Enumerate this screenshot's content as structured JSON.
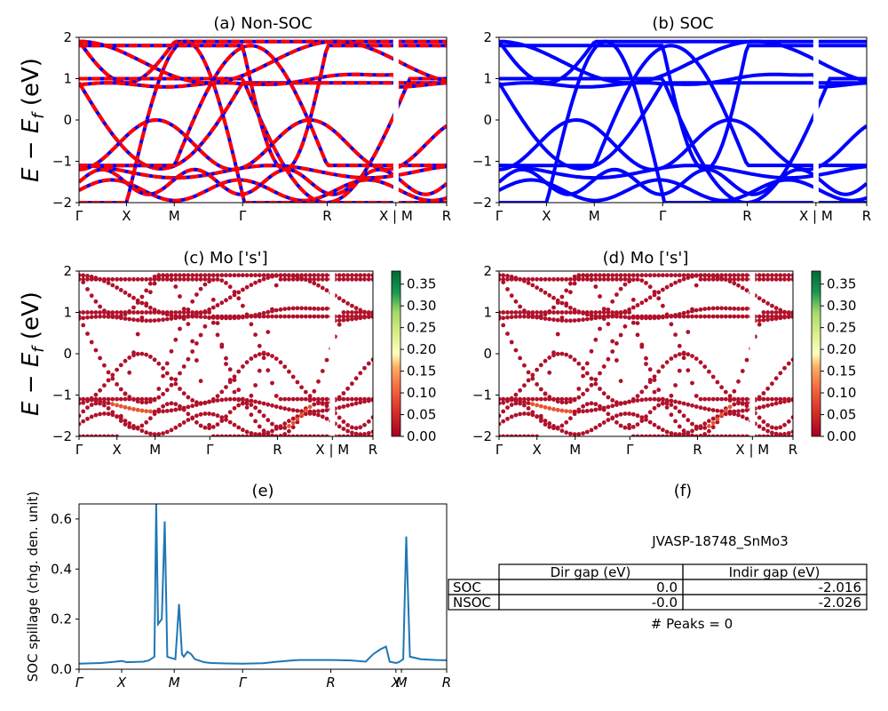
{
  "chart_data": [
    {
      "panel": "a",
      "type": "line",
      "title": "(a) Non-SOC",
      "ylabel": "E − E_f (eV)",
      "ylim": [
        -2,
        2
      ],
      "yticks": [
        "−2",
        "−1",
        "0",
        "1",
        "2"
      ],
      "kpath": [
        "Γ",
        "X",
        "M",
        "Γ",
        "R",
        "X | M",
        "R"
      ],
      "series_colors": [
        "#ff0000",
        "#0000ff"
      ],
      "description": "band structure, red and blue dashed overlapping bands"
    },
    {
      "panel": "b",
      "type": "line",
      "title": "(b) SOC",
      "ylim": [
        -2,
        2
      ],
      "yticks": [
        "−2",
        "−1",
        "0",
        "1",
        "2"
      ],
      "kpath": [
        "Γ",
        "X",
        "M",
        "Γ",
        "R",
        "X | M",
        "R"
      ],
      "series_colors": [
        "#0000ff"
      ]
    },
    {
      "panel": "c",
      "type": "scatter",
      "title": "(c)  Mo ['s']",
      "ylabel": "E − E_f (eV)",
      "ylim": [
        -2,
        2
      ],
      "yticks": [
        "−2",
        "−1",
        "0",
        "1",
        "2"
      ],
      "kpath": [
        "Γ",
        "X",
        "M",
        "Γ",
        "R",
        "X | M",
        "R"
      ],
      "colorbar": {
        "min": 0.0,
        "max": 0.38,
        "ticks": [
          "0.00",
          "0.05",
          "0.10",
          "0.15",
          "0.20",
          "0.25",
          "0.30",
          "0.35"
        ],
        "colormap": "RdYlGn"
      }
    },
    {
      "panel": "d",
      "type": "scatter",
      "title": "(d) Mo ['s']",
      "ylim": [
        -2,
        2
      ],
      "yticks": [
        "−2",
        "−1",
        "0",
        "1",
        "2"
      ],
      "kpath": [
        "Γ",
        "X",
        "M",
        "Γ",
        "R",
        "X | M",
        "R"
      ],
      "colorbar": {
        "min": 0.0,
        "max": 0.38,
        "ticks": [
          "0.00",
          "0.05",
          "0.10",
          "0.15",
          "0.20",
          "0.25",
          "0.30",
          "0.35"
        ],
        "colormap": "RdYlGn"
      }
    },
    {
      "panel": "e",
      "type": "line",
      "title": "(e)",
      "ylabel": "SOC spillage (chg. den. unit)",
      "ylim": [
        0,
        0.66
      ],
      "yticks": [
        "0.0",
        "0.2",
        "0.4",
        "0.6"
      ],
      "kpath": [
        "Γ",
        "X",
        "M",
        "Γ",
        "R",
        "X",
        "M",
        "R"
      ],
      "kpos": [
        0,
        0.116,
        0.259,
        0.445,
        0.685,
        0.862,
        0.877,
        1.0
      ],
      "series": [
        {
          "color": "#1f77b4",
          "x": [
            0,
            0.06,
            0.1,
            0.116,
            0.13,
            0.175,
            0.19,
            0.205,
            0.21,
            0.215,
            0.225,
            0.233,
            0.24,
            0.25,
            0.262,
            0.272,
            0.28,
            0.285,
            0.295,
            0.305,
            0.315,
            0.325,
            0.34,
            0.36,
            0.4,
            0.445,
            0.5,
            0.54,
            0.58,
            0.6,
            0.685,
            0.74,
            0.78,
            0.8,
            0.82,
            0.835,
            0.845,
            0.862,
            0.87,
            0.877,
            0.882,
            0.89,
            0.9,
            0.93,
            0.97,
            1.0
          ],
          "y": [
            0.022,
            0.025,
            0.03,
            0.033,
            0.028,
            0.03,
            0.035,
            0.05,
            0.66,
            0.18,
            0.2,
            0.59,
            0.05,
            0.045,
            0.04,
            0.26,
            0.06,
            0.05,
            0.07,
            0.06,
            0.04,
            0.035,
            0.028,
            0.025,
            0.023,
            0.022,
            0.024,
            0.03,
            0.035,
            0.037,
            0.037,
            0.035,
            0.03,
            0.06,
            0.08,
            0.09,
            0.03,
            0.025,
            0.028,
            0.035,
            0.04,
            0.53,
            0.05,
            0.04,
            0.037,
            0.036
          ]
        }
      ]
    }
  ],
  "panel_f": {
    "title": "(f)",
    "material": "JVASP-18748_SnMo3",
    "table": {
      "headers": [
        "Dir gap (eV)",
        "Indir gap (eV)"
      ],
      "rows": [
        {
          "label": "SOC",
          "dir": "0.0",
          "indir": "-2.016"
        },
        {
          "label": "NSOC",
          "dir": "-0.0",
          "indir": "-2.026"
        }
      ]
    },
    "peaks": "# Peaks = 0"
  }
}
